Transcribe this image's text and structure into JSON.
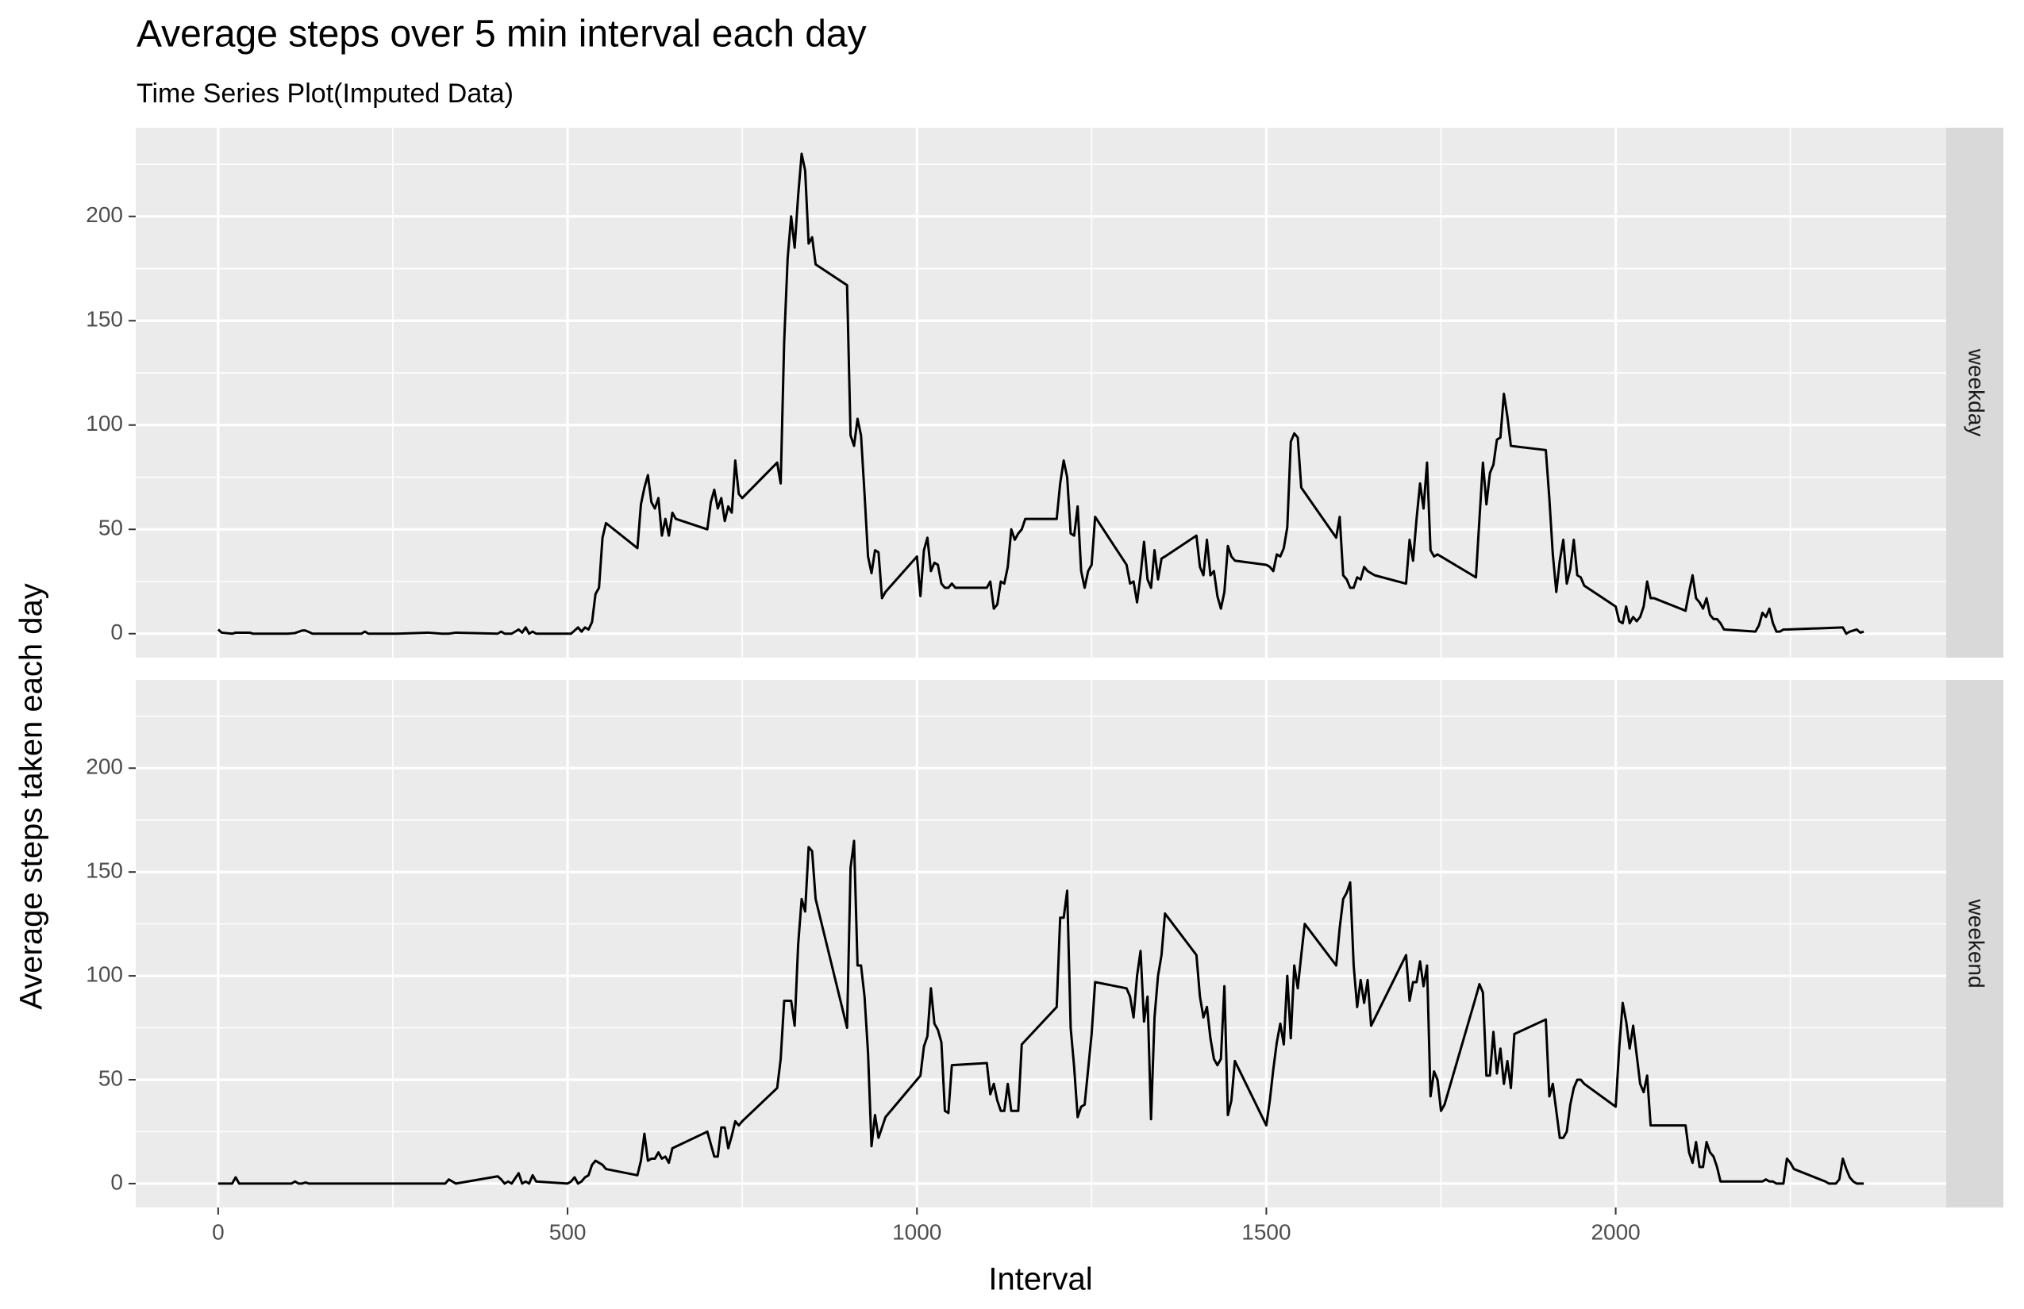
{
  "chart_data": {
    "type": "line",
    "title": "Average steps over 5 min interval each day",
    "subtitle": "Time Series Plot(Imputed Data)",
    "x_label": "Interval",
    "y_label": "Average steps taken each day",
    "xlim": [
      -118,
      2473
    ],
    "xticks": [
      0,
      500,
      1000,
      1500,
      2000
    ],
    "x_minor_breaks": [
      250,
      750,
      1250,
      1750,
      2250
    ],
    "ylim": [
      -11.5,
      242.5
    ],
    "yticks": [
      0,
      50,
      100,
      150,
      200
    ],
    "y_minor_breaks": [
      25,
      75,
      125,
      175,
      225
    ],
    "grid": true,
    "series": [
      {
        "name": "weekday",
        "color": "#000000",
        "x": [
          0,
          5,
          20,
          25,
          45,
          50,
          55,
          100,
          110,
          120,
          125,
          135,
          200,
          205,
          210,
          215,
          255,
          300,
          320,
          330,
          340,
          400,
          405,
          410,
          420,
          430,
          435,
          440,
          445,
          450,
          455,
          500,
          505,
          510,
          515,
          520,
          525,
          530,
          535,
          540,
          545,
          550,
          555,
          600,
          605,
          610,
          615,
          620,
          625,
          630,
          635,
          640,
          645,
          650,
          655,
          700,
          705,
          710,
          715,
          720,
          725,
          730,
          735,
          740,
          745,
          750,
          800,
          805,
          810,
          815,
          820,
          825,
          830,
          835,
          840,
          845,
          850,
          855,
          900,
          905,
          910,
          915,
          920,
          925,
          930,
          935,
          940,
          945,
          950,
          955,
          1000,
          1005,
          1010,
          1015,
          1020,
          1025,
          1030,
          1035,
          1040,
          1045,
          1050,
          1055,
          1100,
          1105,
          1110,
          1115,
          1120,
          1125,
          1130,
          1135,
          1140,
          1145,
          1150,
          1155,
          1200,
          1205,
          1210,
          1215,
          1220,
          1225,
          1230,
          1235,
          1240,
          1245,
          1250,
          1255,
          1300,
          1305,
          1310,
          1315,
          1320,
          1325,
          1330,
          1335,
          1340,
          1345,
          1350,
          1355,
          1400,
          1405,
          1410,
          1415,
          1420,
          1425,
          1430,
          1435,
          1440,
          1445,
          1450,
          1455,
          1500,
          1505,
          1510,
          1515,
          1520,
          1525,
          1530,
          1535,
          1540,
          1545,
          1550,
          1600,
          1605,
          1610,
          1615,
          1620,
          1625,
          1630,
          1635,
          1640,
          1645,
          1650,
          1655,
          1700,
          1705,
          1710,
          1715,
          1720,
          1725,
          1730,
          1735,
          1740,
          1745,
          1750,
          1800,
          1805,
          1810,
          1815,
          1820,
          1825,
          1830,
          1835,
          1840,
          1845,
          1850,
          1900,
          1905,
          1910,
          1915,
          1920,
          1925,
          1930,
          1935,
          1940,
          1945,
          1950,
          1955,
          2000,
          2005,
          2010,
          2015,
          2020,
          2025,
          2030,
          2035,
          2040,
          2045,
          2050,
          2055,
          2100,
          2105,
          2110,
          2115,
          2120,
          2125,
          2130,
          2135,
          2140,
          2145,
          2150,
          2155,
          2200,
          2205,
          2210,
          2215,
          2220,
          2225,
          2230,
          2235,
          2240,
          2245,
          2325,
          2330,
          2335,
          2340,
          2345,
          2350,
          2355
        ],
        "values": [
          2,
          0.5,
          0,
          0.5,
          0.5,
          0,
          0,
          0,
          0.3,
          1.5,
          1.5,
          0,
          0,
          0,
          1,
          0,
          0,
          0.5,
          0,
          0,
          0.5,
          0,
          1,
          0,
          0,
          2,
          0.5,
          3,
          0,
          1,
          0,
          0,
          0,
          1.5,
          3,
          1,
          3,
          2,
          5.5,
          19,
          22,
          46,
          53,
          41,
          62,
          70,
          76,
          63,
          60,
          65,
          47,
          55,
          47,
          58,
          55,
          50,
          63,
          69,
          60,
          65,
          54,
          61,
          58,
          83,
          67,
          65,
          82,
          72,
          140,
          180,
          200,
          185,
          210,
          230,
          222,
          187,
          190,
          177,
          167,
          95,
          90,
          103,
          95,
          67,
          37,
          29,
          40,
          39,
          17,
          20,
          37,
          18,
          40,
          46,
          30,
          34,
          33,
          24,
          22,
          22,
          24,
          22,
          22,
          25,
          12,
          14,
          25,
          24,
          32,
          50,
          45,
          48,
          50,
          55,
          55,
          72,
          83,
          75,
          48,
          47,
          61,
          30,
          22,
          30,
          33,
          56,
          33,
          24,
          25,
          15,
          28,
          44,
          26,
          22,
          40,
          26,
          36,
          37,
          47,
          32,
          28,
          45,
          28,
          30,
          18,
          12,
          20,
          42,
          37,
          35,
          33,
          32,
          30,
          38,
          37,
          41,
          51,
          92,
          96,
          94,
          70,
          46,
          56,
          28,
          26,
          22,
          22,
          27,
          26,
          32,
          30,
          29,
          28,
          24,
          45,
          35,
          55,
          72,
          60,
          82,
          40,
          37,
          38,
          37,
          27,
          55,
          82,
          62,
          77,
          81,
          93,
          94,
          115,
          104,
          90,
          88,
          65,
          38,
          20,
          35,
          45,
          24,
          31,
          45,
          28,
          27,
          23,
          13,
          6,
          5,
          13,
          5,
          8,
          6,
          8,
          13,
          25,
          17,
          17,
          11,
          20,
          28,
          17,
          15,
          12,
          17,
          9,
          7,
          7,
          5,
          2,
          1,
          4,
          10,
          8,
          12,
          5,
          1,
          1,
          2,
          2,
          3,
          0,
          1,
          1.5,
          2,
          0.5,
          1
        ]
      },
      {
        "name": "weekend",
        "color": "#000000",
        "x": [
          0,
          5,
          20,
          25,
          30,
          55,
          100,
          105,
          110,
          115,
          120,
          125,
          130,
          135,
          200,
          255,
          300,
          320,
          325,
          330,
          335,
          340,
          400,
          405,
          410,
          415,
          420,
          430,
          435,
          440,
          445,
          450,
          455,
          500,
          505,
          510,
          515,
          520,
          525,
          530,
          535,
          540,
          545,
          550,
          555,
          600,
          605,
          610,
          615,
          620,
          625,
          630,
          635,
          640,
          645,
          650,
          700,
          705,
          710,
          715,
          720,
          725,
          730,
          735,
          740,
          745,
          750,
          800,
          805,
          810,
          815,
          820,
          825,
          830,
          835,
          840,
          845,
          850,
          855,
          900,
          905,
          910,
          915,
          920,
          925,
          930,
          935,
          940,
          945,
          950,
          955,
          1000,
          1005,
          1010,
          1015,
          1020,
          1025,
          1030,
          1035,
          1040,
          1045,
          1050,
          1100,
          1105,
          1110,
          1115,
          1120,
          1125,
          1130,
          1135,
          1140,
          1145,
          1150,
          1200,
          1205,
          1210,
          1215,
          1220,
          1225,
          1230,
          1235,
          1240,
          1245,
          1250,
          1255,
          1300,
          1305,
          1310,
          1315,
          1320,
          1325,
          1330,
          1335,
          1340,
          1345,
          1350,
          1355,
          1400,
          1405,
          1410,
          1415,
          1420,
          1425,
          1430,
          1435,
          1440,
          1445,
          1450,
          1455,
          1500,
          1505,
          1510,
          1515,
          1520,
          1525,
          1530,
          1535,
          1540,
          1545,
          1550,
          1555,
          1600,
          1605,
          1610,
          1615,
          1620,
          1625,
          1630,
          1635,
          1640,
          1645,
          1650,
          1700,
          1705,
          1710,
          1715,
          1720,
          1725,
          1730,
          1735,
          1740,
          1745,
          1750,
          1755,
          1800,
          1805,
          1810,
          1815,
          1820,
          1825,
          1830,
          1835,
          1840,
          1845,
          1850,
          1855,
          1900,
          1905,
          1910,
          1915,
          1920,
          1925,
          1930,
          1935,
          1940,
          1945,
          1950,
          1955,
          2000,
          2005,
          2010,
          2015,
          2020,
          2025,
          2030,
          2035,
          2040,
          2045,
          2050,
          2055,
          2100,
          2105,
          2110,
          2115,
          2120,
          2125,
          2130,
          2135,
          2140,
          2145,
          2150,
          2155,
          2200,
          2205,
          2210,
          2215,
          2220,
          2225,
          2230,
          2235,
          2240,
          2245,
          2250,
          2255,
          2300,
          2305,
          2310,
          2315,
          2320,
          2325,
          2330,
          2335,
          2340,
          2345,
          2350,
          2355
        ],
        "values": [
          0,
          0,
          0,
          3,
          0,
          0,
          0,
          0,
          1,
          0,
          0,
          0.5,
          0,
          0,
          0,
          0,
          0,
          0,
          0,
          2,
          1,
          0,
          3.5,
          2,
          0,
          1,
          0,
          5,
          0,
          1,
          0,
          4,
          1,
          0,
          1,
          3,
          0,
          1,
          3,
          4,
          9,
          11,
          10,
          9,
          7,
          4,
          11,
          24,
          11,
          12,
          12,
          15,
          12,
          13,
          10,
          17,
          25,
          19,
          13,
          13,
          27,
          27,
          17,
          23,
          30,
          28,
          30,
          46,
          60,
          88,
          88,
          88,
          76,
          115,
          137,
          131,
          162,
          160,
          137,
          75,
          152,
          165,
          105,
          105,
          90,
          63,
          18,
          33,
          22,
          27,
          32,
          50,
          52,
          66,
          71,
          94,
          77,
          74,
          68,
          35,
          34,
          57,
          58,
          43,
          48,
          40,
          35,
          35,
          48,
          35,
          35,
          35,
          67,
          85,
          128,
          128,
          141,
          75,
          56,
          32,
          37,
          38,
          55,
          72,
          97,
          94,
          90,
          80,
          100,
          112,
          78,
          90,
          31,
          80,
          100,
          110,
          130,
          110,
          90,
          80,
          85,
          70,
          60,
          57,
          60,
          95,
          33,
          40,
          59,
          28,
          40,
          55,
          68,
          77,
          67,
          100,
          70,
          105,
          94,
          110,
          125,
          105,
          123,
          137,
          140,
          145,
          105,
          85,
          98,
          87,
          98,
          76,
          110,
          88,
          97,
          97,
          107,
          95,
          105,
          42,
          54,
          50,
          35,
          38,
          90,
          96,
          92,
          52,
          52,
          73,
          53,
          65,
          48,
          59,
          46,
          72,
          79,
          42,
          48,
          35,
          22,
          22,
          25,
          38,
          46,
          50,
          50,
          48,
          37,
          65,
          87,
          78,
          65,
          76,
          62,
          48,
          44,
          52,
          28,
          28,
          28,
          15,
          10,
          20,
          8,
          8,
          20,
          15,
          13,
          8,
          1,
          1,
          1,
          1,
          1,
          2,
          1,
          1,
          0,
          0,
          0,
          12,
          10,
          7,
          1,
          0,
          0,
          0,
          2,
          12,
          7,
          3,
          1,
          0,
          0,
          0
        ]
      }
    ]
  }
}
